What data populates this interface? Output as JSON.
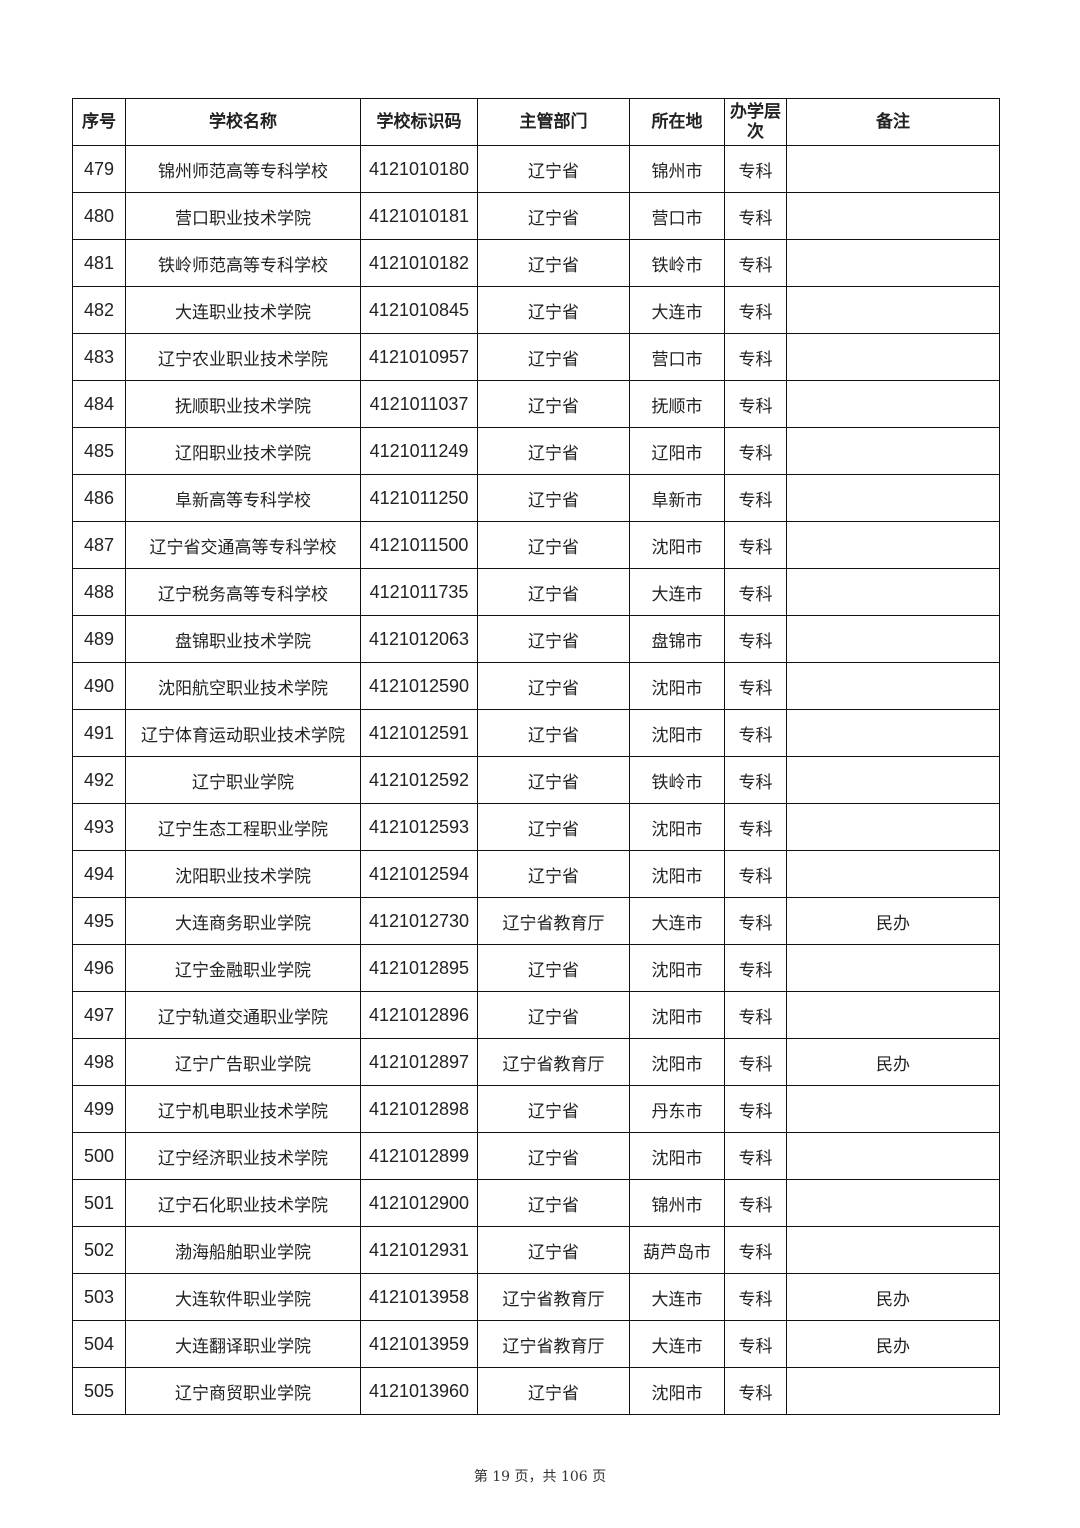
{
  "table": {
    "headers": [
      "序号",
      "学校名称",
      "学校标识码",
      "主管部门",
      "所在地",
      "办学层次",
      "备注"
    ],
    "rows": [
      [
        "479",
        "锦州师范高等专科学校",
        "4121010180",
        "辽宁省",
        "锦州市",
        "专科",
        ""
      ],
      [
        "480",
        "营口职业技术学院",
        "4121010181",
        "辽宁省",
        "营口市",
        "专科",
        ""
      ],
      [
        "481",
        "铁岭师范高等专科学校",
        "4121010182",
        "辽宁省",
        "铁岭市",
        "专科",
        ""
      ],
      [
        "482",
        "大连职业技术学院",
        "4121010845",
        "辽宁省",
        "大连市",
        "专科",
        ""
      ],
      [
        "483",
        "辽宁农业职业技术学院",
        "4121010957",
        "辽宁省",
        "营口市",
        "专科",
        ""
      ],
      [
        "484",
        "抚顺职业技术学院",
        "4121011037",
        "辽宁省",
        "抚顺市",
        "专科",
        ""
      ],
      [
        "485",
        "辽阳职业技术学院",
        "4121011249",
        "辽宁省",
        "辽阳市",
        "专科",
        ""
      ],
      [
        "486",
        "阜新高等专科学校",
        "4121011250",
        "辽宁省",
        "阜新市",
        "专科",
        ""
      ],
      [
        "487",
        "辽宁省交通高等专科学校",
        "4121011500",
        "辽宁省",
        "沈阳市",
        "专科",
        ""
      ],
      [
        "488",
        "辽宁税务高等专科学校",
        "4121011735",
        "辽宁省",
        "大连市",
        "专科",
        ""
      ],
      [
        "489",
        "盘锦职业技术学院",
        "4121012063",
        "辽宁省",
        "盘锦市",
        "专科",
        ""
      ],
      [
        "490",
        "沈阳航空职业技术学院",
        "4121012590",
        "辽宁省",
        "沈阳市",
        "专科",
        ""
      ],
      [
        "491",
        "辽宁体育运动职业技术学院",
        "4121012591",
        "辽宁省",
        "沈阳市",
        "专科",
        ""
      ],
      [
        "492",
        "辽宁职业学院",
        "4121012592",
        "辽宁省",
        "铁岭市",
        "专科",
        ""
      ],
      [
        "493",
        "辽宁生态工程职业学院",
        "4121012593",
        "辽宁省",
        "沈阳市",
        "专科",
        ""
      ],
      [
        "494",
        "沈阳职业技术学院",
        "4121012594",
        "辽宁省",
        "沈阳市",
        "专科",
        ""
      ],
      [
        "495",
        "大连商务职业学院",
        "4121012730",
        "辽宁省教育厅",
        "大连市",
        "专科",
        "民办"
      ],
      [
        "496",
        "辽宁金融职业学院",
        "4121012895",
        "辽宁省",
        "沈阳市",
        "专科",
        ""
      ],
      [
        "497",
        "辽宁轨道交通职业学院",
        "4121012896",
        "辽宁省",
        "沈阳市",
        "专科",
        ""
      ],
      [
        "498",
        "辽宁广告职业学院",
        "4121012897",
        "辽宁省教育厅",
        "沈阳市",
        "专科",
        "民办"
      ],
      [
        "499",
        "辽宁机电职业技术学院",
        "4121012898",
        "辽宁省",
        "丹东市",
        "专科",
        ""
      ],
      [
        "500",
        "辽宁经济职业技术学院",
        "4121012899",
        "辽宁省",
        "沈阳市",
        "专科",
        ""
      ],
      [
        "501",
        "辽宁石化职业技术学院",
        "4121012900",
        "辽宁省",
        "锦州市",
        "专科",
        ""
      ],
      [
        "502",
        "渤海船舶职业学院",
        "4121012931",
        "辽宁省",
        "葫芦岛市",
        "专科",
        ""
      ],
      [
        "503",
        "大连软件职业学院",
        "4121013958",
        "辽宁省教育厅",
        "大连市",
        "专科",
        "民办"
      ],
      [
        "504",
        "大连翻译职业学院",
        "4121013959",
        "辽宁省教育厅",
        "大连市",
        "专科",
        "民办"
      ],
      [
        "505",
        "辽宁商贸职业学院",
        "4121013960",
        "辽宁省",
        "沈阳市",
        "专科",
        ""
      ]
    ]
  },
  "footer": {
    "page_label": "第 19 页，共 106 页"
  }
}
